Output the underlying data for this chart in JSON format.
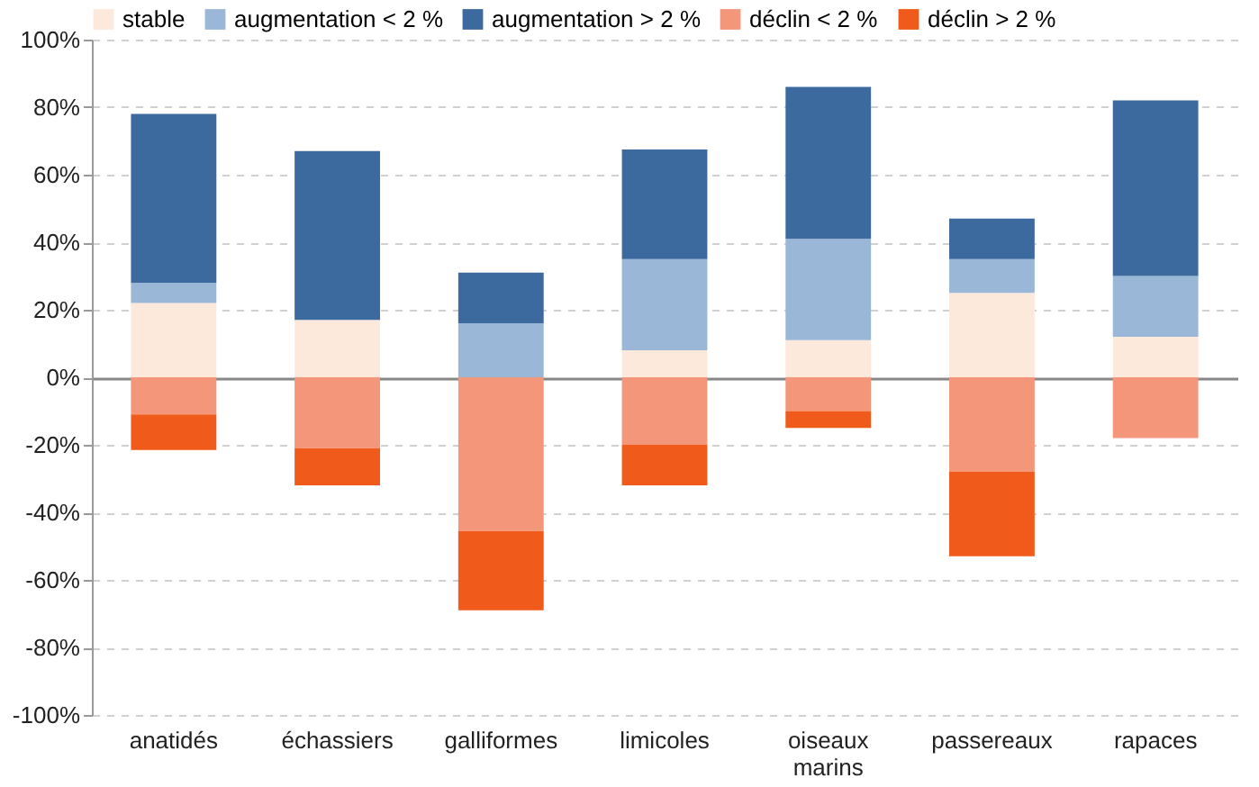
{
  "chart_data": {
    "type": "bar",
    "stacked": true,
    "categories": [
      "anatidés",
      "échassiers",
      "galliformes",
      "limicoles",
      "oiseaux marins",
      "passereaux",
      "rapaces"
    ],
    "series": [
      {
        "name": "stable",
        "color": "#fde9dc",
        "values": [
          22,
          17,
          0,
          8,
          11,
          25,
          12
        ]
      },
      {
        "name": "augmentation < 2 %",
        "color": "#9bb7d8",
        "values": [
          6,
          0,
          16,
          27,
          30,
          10,
          18
        ]
      },
      {
        "name": "augmentation > 2 %",
        "color": "#3d6a9e",
        "values": [
          50,
          50,
          15,
          32.5,
          45,
          12,
          52
        ]
      },
      {
        "name": "déclin < 2 %",
        "color": "#f4967a",
        "values": [
          -11,
          -21,
          -45.5,
          -20,
          -10,
          -28,
          -18
        ]
      },
      {
        "name": "déclin > 2 %",
        "color": "#f05a1a",
        "values": [
          -10.5,
          -11,
          -23.5,
          -12,
          -5,
          -25,
          0
        ]
      }
    ],
    "ylim": [
      -100,
      100
    ],
    "yticks": [
      {
        "value": -100,
        "label": "-100%"
      },
      {
        "value": -80,
        "label": "-80%"
      },
      {
        "value": -60,
        "label": "-60%"
      },
      {
        "value": -40,
        "label": "-40%"
      },
      {
        "value": -20,
        "label": "-20%"
      },
      {
        "value": 0,
        "label": "0%"
      },
      {
        "value": 20,
        "label": "20%"
      },
      {
        "value": 40,
        "label": "40%"
      },
      {
        "value": 60,
        "label": "60%"
      },
      {
        "value": 80,
        "label": "80%"
      },
      {
        "value": 100,
        "label": "100%"
      }
    ],
    "grid": "y",
    "legend": "top"
  }
}
